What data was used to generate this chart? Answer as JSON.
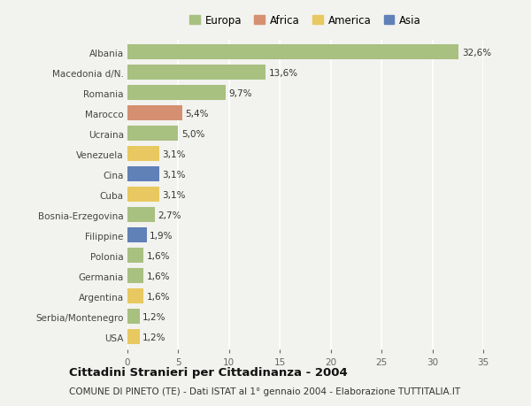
{
  "categories": [
    "Albania",
    "Macedonia d/N.",
    "Romania",
    "Marocco",
    "Ucraina",
    "Venezuela",
    "Cina",
    "Cuba",
    "Bosnia-Erzegovina",
    "Filippine",
    "Polonia",
    "Germania",
    "Argentina",
    "Serbia/Montenegro",
    "USA"
  ],
  "values": [
    32.6,
    13.6,
    9.7,
    5.4,
    5.0,
    3.1,
    3.1,
    3.1,
    2.7,
    1.9,
    1.6,
    1.6,
    1.6,
    1.2,
    1.2
  ],
  "labels": [
    "32,6%",
    "13,6%",
    "9,7%",
    "5,4%",
    "5,0%",
    "3,1%",
    "3,1%",
    "3,1%",
    "2,7%",
    "1,9%",
    "1,6%",
    "1,6%",
    "1,6%",
    "1,2%",
    "1,2%"
  ],
  "continents": [
    "Europa",
    "Europa",
    "Europa",
    "Africa",
    "Europa",
    "America",
    "Asia",
    "America",
    "Europa",
    "Asia",
    "Europa",
    "Europa",
    "America",
    "Europa",
    "America"
  ],
  "continent_colors": {
    "Europa": "#a8c080",
    "Africa": "#d49070",
    "America": "#e8c860",
    "Asia": "#6080b8"
  },
  "legend_order": [
    "Europa",
    "Africa",
    "America",
    "Asia"
  ],
  "xlim": [
    0,
    35
  ],
  "xticks": [
    0,
    5,
    10,
    15,
    20,
    25,
    30,
    35
  ],
  "title": "Cittadini Stranieri per Cittadinanza - 2004",
  "subtitle": "COMUNE DI PINETO (TE) - Dati ISTAT al 1° gennaio 2004 - Elaborazione TUTTITALIA.IT",
  "background_color": "#f2f2ee",
  "grid_color": "#ffffff",
  "bar_height": 0.75,
  "label_fontsize": 7.5,
  "ytick_fontsize": 7.5,
  "xtick_fontsize": 7.5,
  "title_fontsize": 9.5,
  "subtitle_fontsize": 7.5,
  "legend_fontsize": 8.5
}
